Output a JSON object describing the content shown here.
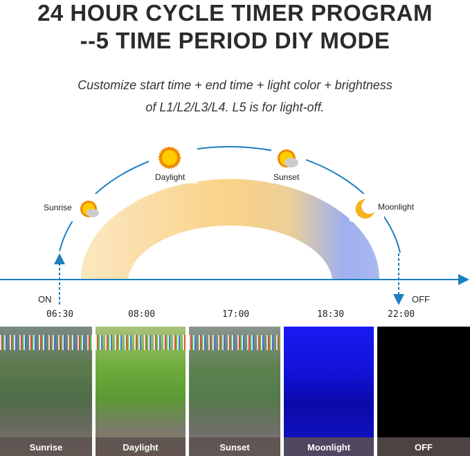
{
  "title_line1": "24 HOUR CYCLE TIMER PROGRAM",
  "title_line2": "--5 TIME PERIOD DIY MODE",
  "subtitle_line1": "Customize start time + end time + light color + brightness",
  "subtitle_line2": "of L1/L2/L3/L4. L5 is for light-off.",
  "stages": [
    {
      "label": "Sunrise",
      "icon": "sun-cloud-icon"
    },
    {
      "label": "Daylight",
      "icon": "sun-icon"
    },
    {
      "label": "Sunset",
      "icon": "sun-cloud-icon"
    },
    {
      "label": "Moonlight",
      "icon": "moon-icon"
    }
  ],
  "on_label": "ON",
  "off_label": "OFF",
  "times": [
    "06:30",
    "08:00",
    "17:00",
    "18:30",
    "22:00"
  ],
  "panels": [
    "Sunrise",
    "Daylight",
    "Sunset",
    "Moonlight",
    "OFF"
  ],
  "colors": {
    "axis": "#1b7fc1",
    "warm": "#f9cf7a",
    "blue": "#8ea6ef",
    "moonlight": "#1010e0"
  }
}
